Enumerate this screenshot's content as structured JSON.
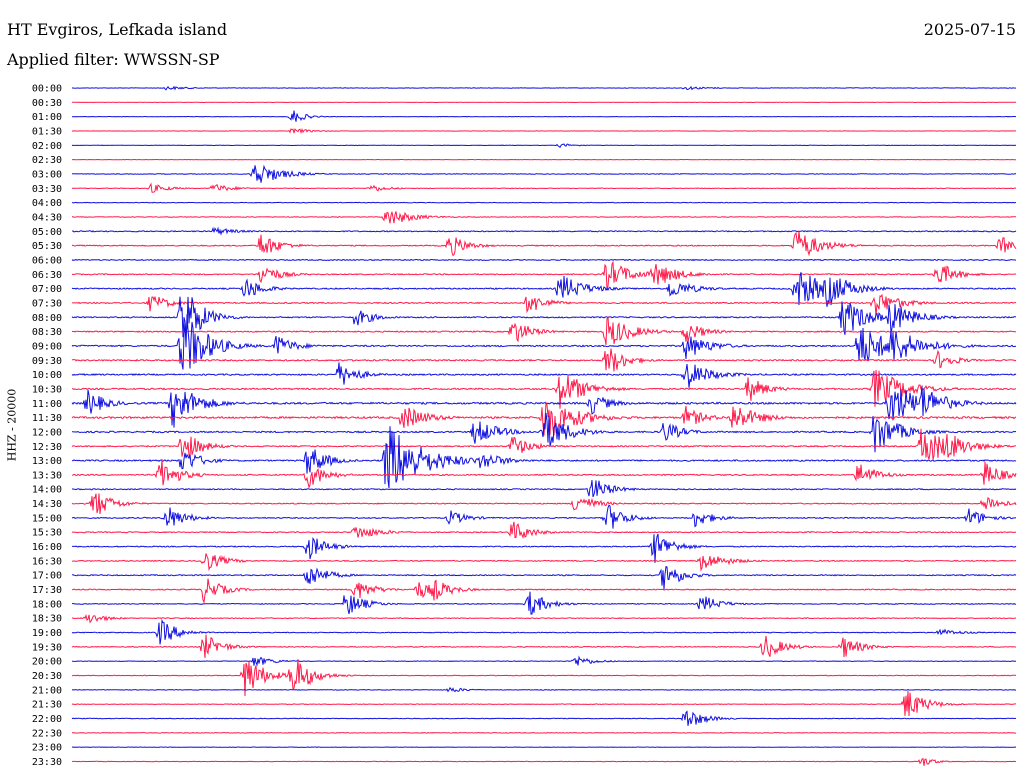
{
  "header": {
    "station": "HT Evgiros, Lefkada island",
    "date": "2025-07-15",
    "filter": "Applied filter: WWSSN-SP",
    "channel_label": "HHZ - 20000"
  },
  "colors": {
    "blue": "#1010e0",
    "red": "#ff1a4a"
  },
  "chart_data": {
    "type": "line",
    "title": "HT Evgiros, Lefkada island",
    "ylabel": "HHZ - 20000",
    "row_labels": [
      "00:00",
      "00:30",
      "01:00",
      "01:30",
      "02:00",
      "02:30",
      "03:00",
      "03:30",
      "04:00",
      "04:30",
      "05:00",
      "05:30",
      "06:00",
      "06:30",
      "07:00",
      "07:30",
      "08:00",
      "08:30",
      "09:00",
      "09:30",
      "10:00",
      "10:30",
      "11:00",
      "11:30",
      "12:00",
      "12:30",
      "13:00",
      "13:30",
      "14:00",
      "14:30",
      "15:00",
      "15:30",
      "16:00",
      "16:30",
      "17:00",
      "17:30",
      "18:00",
      "18:30",
      "19:00",
      "19:30",
      "20:00",
      "20:30",
      "21:00",
      "21:30",
      "22:00",
      "22:30",
      "23:00",
      "23:30"
    ],
    "row_minutes": 30,
    "series_colors": [
      "blue",
      "red"
    ],
    "noise_levels": [
      0.2,
      0.15,
      0.2,
      0.15,
      0.2,
      0.2,
      0.3,
      0.3,
      0.3,
      0.3,
      0.5,
      0.5,
      0.5,
      0.5,
      0.6,
      0.6,
      0.6,
      0.6,
      0.7,
      0.7,
      0.7,
      0.7,
      0.9,
      0.9,
      0.7,
      0.6,
      0.7,
      0.6,
      0.5,
      0.5,
      0.5,
      0.5,
      0.5,
      0.5,
      0.5,
      0.5,
      0.4,
      0.4,
      0.4,
      0.4,
      0.3,
      0.3,
      0.3,
      0.3,
      0.3,
      0.3,
      0.2,
      0.2
    ],
    "events": [
      {
        "row": 0,
        "minute": 3.0,
        "amplitude": 2,
        "duration": 2
      },
      {
        "row": 0,
        "minute": 19.5,
        "amplitude": 2,
        "duration": 2
      },
      {
        "row": 2,
        "minute": 7.0,
        "amplitude": 8,
        "duration": 1
      },
      {
        "row": 3,
        "minute": 7.0,
        "amplitude": 3,
        "duration": 1.5
      },
      {
        "row": 4,
        "minute": 15.5,
        "amplitude": 2,
        "duration": 1.5
      },
      {
        "row": 6,
        "minute": 5.8,
        "amplitude": 14,
        "duration": 2
      },
      {
        "row": 7,
        "minute": 2.5,
        "amplitude": 5,
        "duration": 1.5
      },
      {
        "row": 7,
        "minute": 4.5,
        "amplitude": 5,
        "duration": 1.5
      },
      {
        "row": 7,
        "minute": 9.5,
        "amplitude": 4,
        "duration": 1.5
      },
      {
        "row": 9,
        "minute": 10.0,
        "amplitude": 10,
        "duration": 2
      },
      {
        "row": 10,
        "minute": 4.5,
        "amplitude": 4,
        "duration": 2
      },
      {
        "row": 11,
        "minute": 6.0,
        "amplitude": 14,
        "duration": 1.5
      },
      {
        "row": 11,
        "minute": 12.0,
        "amplitude": 12,
        "duration": 1.5
      },
      {
        "row": 11,
        "minute": 23.0,
        "amplitude": 18,
        "duration": 2
      },
      {
        "row": 11,
        "minute": 29.5,
        "amplitude": 10,
        "duration": 1.5
      },
      {
        "row": 13,
        "minute": 6.0,
        "amplitude": 12,
        "duration": 1.5
      },
      {
        "row": 13,
        "minute": 17.0,
        "amplitude": 16,
        "duration": 2
      },
      {
        "row": 13,
        "minute": 18.5,
        "amplitude": 14,
        "duration": 2
      },
      {
        "row": 13,
        "minute": 27.5,
        "amplitude": 14,
        "duration": 1.5
      },
      {
        "row": 14,
        "minute": 5.5,
        "amplitude": 12,
        "duration": 1.5
      },
      {
        "row": 14,
        "minute": 15.5,
        "amplitude": 16,
        "duration": 2
      },
      {
        "row": 14,
        "minute": 19.0,
        "amplitude": 10,
        "duration": 2
      },
      {
        "row": 14,
        "minute": 23.0,
        "amplitude": 22,
        "duration": 2.5
      },
      {
        "row": 14,
        "minute": 24.0,
        "amplitude": 20,
        "duration": 2
      },
      {
        "row": 15,
        "minute": 2.5,
        "amplitude": 10,
        "duration": 1.5
      },
      {
        "row": 15,
        "minute": 14.5,
        "amplitude": 12,
        "duration": 1.5
      },
      {
        "row": 15,
        "minute": 25.5,
        "amplitude": 14,
        "duration": 2
      },
      {
        "row": 16,
        "minute": 3.5,
        "amplitude": 40,
        "duration": 1.5
      },
      {
        "row": 16,
        "minute": 9.0,
        "amplitude": 10,
        "duration": 1.5
      },
      {
        "row": 16,
        "minute": 24.5,
        "amplitude": 22,
        "duration": 2
      },
      {
        "row": 16,
        "minute": 26.0,
        "amplitude": 18,
        "duration": 2
      },
      {
        "row": 17,
        "minute": 14.0,
        "amplitude": 14,
        "duration": 1.5
      },
      {
        "row": 17,
        "minute": 17.0,
        "amplitude": 18,
        "duration": 2
      },
      {
        "row": 17,
        "minute": 19.5,
        "amplitude": 12,
        "duration": 1.5
      },
      {
        "row": 18,
        "minute": 3.5,
        "amplitude": 40,
        "duration": 2
      },
      {
        "row": 18,
        "minute": 6.5,
        "amplitude": 12,
        "duration": 1.5
      },
      {
        "row": 18,
        "minute": 19.5,
        "amplitude": 14,
        "duration": 2
      },
      {
        "row": 18,
        "minute": 25.0,
        "amplitude": 24,
        "duration": 2.5
      },
      {
        "row": 18,
        "minute": 26.0,
        "amplitude": 22,
        "duration": 2.5
      },
      {
        "row": 19,
        "minute": 17.0,
        "amplitude": 18,
        "duration": 1.5
      },
      {
        "row": 19,
        "minute": 27.5,
        "amplitude": 10,
        "duration": 1.5
      },
      {
        "row": 20,
        "minute": 8.5,
        "amplitude": 14,
        "duration": 1.5
      },
      {
        "row": 20,
        "minute": 19.5,
        "amplitude": 16,
        "duration": 2
      },
      {
        "row": 21,
        "minute": 15.5,
        "amplitude": 22,
        "duration": 2
      },
      {
        "row": 21,
        "minute": 21.5,
        "amplitude": 14,
        "duration": 1.5
      },
      {
        "row": 21,
        "minute": 25.5,
        "amplitude": 22,
        "duration": 2.5
      },
      {
        "row": 22,
        "minute": 0.5,
        "amplitude": 14,
        "duration": 1.5
      },
      {
        "row": 22,
        "minute": 3.2,
        "amplitude": 26,
        "duration": 2
      },
      {
        "row": 22,
        "minute": 16.5,
        "amplitude": 12,
        "duration": 1.5
      },
      {
        "row": 22,
        "minute": 26.0,
        "amplitude": 24,
        "duration": 2.5
      },
      {
        "row": 22,
        "minute": 27.0,
        "amplitude": 20,
        "duration": 2
      },
      {
        "row": 23,
        "minute": 10.5,
        "amplitude": 14,
        "duration": 2
      },
      {
        "row": 23,
        "minute": 15.0,
        "amplitude": 26,
        "duration": 2.5
      },
      {
        "row": 23,
        "minute": 19.5,
        "amplitude": 12,
        "duration": 1.5
      },
      {
        "row": 23,
        "minute": 21.0,
        "amplitude": 16,
        "duration": 2
      },
      {
        "row": 24,
        "minute": 12.8,
        "amplitude": 14,
        "duration": 2
      },
      {
        "row": 24,
        "minute": 15.0,
        "amplitude": 22,
        "duration": 2
      },
      {
        "row": 24,
        "minute": 18.8,
        "amplitude": 12,
        "duration": 1.5
      },
      {
        "row": 24,
        "minute": 25.5,
        "amplitude": 24,
        "duration": 2
      },
      {
        "row": 25,
        "minute": 3.5,
        "amplitude": 18,
        "duration": 1.5
      },
      {
        "row": 25,
        "minute": 14.0,
        "amplitude": 12,
        "duration": 1.5
      },
      {
        "row": 25,
        "minute": 27.0,
        "amplitude": 22,
        "duration": 2.5
      },
      {
        "row": 25,
        "minute": 27.8,
        "amplitude": 16,
        "duration": 2
      },
      {
        "row": 26,
        "minute": 3.5,
        "amplitude": 14,
        "duration": 1.5
      },
      {
        "row": 26,
        "minute": 7.5,
        "amplitude": 18,
        "duration": 1.5
      },
      {
        "row": 26,
        "minute": 10.0,
        "amplitude": 40,
        "duration": 3
      },
      {
        "row": 26,
        "minute": 13.0,
        "amplitude": 10,
        "duration": 2
      },
      {
        "row": 27,
        "minute": 2.8,
        "amplitude": 18,
        "duration": 1.5
      },
      {
        "row": 27,
        "minute": 7.5,
        "amplitude": 14,
        "duration": 1.5
      },
      {
        "row": 27,
        "minute": 25.0,
        "amplitude": 14,
        "duration": 1.5
      },
      {
        "row": 27,
        "minute": 29.0,
        "amplitude": 14,
        "duration": 1.5
      },
      {
        "row": 28,
        "minute": 16.5,
        "amplitude": 14,
        "duration": 1.5
      },
      {
        "row": 29,
        "minute": 0.7,
        "amplitude": 16,
        "duration": 1.5
      },
      {
        "row": 29,
        "minute": 16.0,
        "amplitude": 12,
        "duration": 1.5
      },
      {
        "row": 29,
        "minute": 29.0,
        "amplitude": 10,
        "duration": 1.5
      },
      {
        "row": 30,
        "minute": 3.0,
        "amplitude": 14,
        "duration": 1.5
      },
      {
        "row": 30,
        "minute": 12.0,
        "amplitude": 8,
        "duration": 1.5
      },
      {
        "row": 30,
        "minute": 17.0,
        "amplitude": 16,
        "duration": 1.5
      },
      {
        "row": 30,
        "minute": 19.8,
        "amplitude": 10,
        "duration": 1.5
      },
      {
        "row": 30,
        "minute": 28.5,
        "amplitude": 10,
        "duration": 1.5
      },
      {
        "row": 31,
        "minute": 9.0,
        "amplitude": 8,
        "duration": 2
      },
      {
        "row": 31,
        "minute": 14.0,
        "amplitude": 12,
        "duration": 1.5
      },
      {
        "row": 32,
        "minute": 7.5,
        "amplitude": 14,
        "duration": 1.5
      },
      {
        "row": 32,
        "minute": 18.5,
        "amplitude": 18,
        "duration": 1.5
      },
      {
        "row": 33,
        "minute": 4.2,
        "amplitude": 12,
        "duration": 1.5
      },
      {
        "row": 33,
        "minute": 20.0,
        "amplitude": 10,
        "duration": 2
      },
      {
        "row": 34,
        "minute": 7.5,
        "amplitude": 14,
        "duration": 1.5
      },
      {
        "row": 34,
        "minute": 18.8,
        "amplitude": 16,
        "duration": 1.5
      },
      {
        "row": 35,
        "minute": 4.2,
        "amplitude": 14,
        "duration": 1.5
      },
      {
        "row": 35,
        "minute": 9.0,
        "amplitude": 12,
        "duration": 1.5
      },
      {
        "row": 35,
        "minute": 11.0,
        "amplitude": 10,
        "duration": 1.5
      },
      {
        "row": 35,
        "minute": 11.5,
        "amplitude": 12,
        "duration": 1.5
      },
      {
        "row": 36,
        "minute": 8.7,
        "amplitude": 14,
        "duration": 1.5
      },
      {
        "row": 36,
        "minute": 14.5,
        "amplitude": 14,
        "duration": 1.5
      },
      {
        "row": 36,
        "minute": 20.0,
        "amplitude": 10,
        "duration": 1.5
      },
      {
        "row": 37,
        "minute": 0.5,
        "amplitude": 6,
        "duration": 1.5
      },
      {
        "row": 38,
        "minute": 2.8,
        "amplitude": 14,
        "duration": 1.5
      },
      {
        "row": 38,
        "minute": 27.5,
        "amplitude": 4,
        "duration": 2
      },
      {
        "row": 39,
        "minute": 4.2,
        "amplitude": 14,
        "duration": 1.5
      },
      {
        "row": 39,
        "minute": 22.0,
        "amplitude": 14,
        "duration": 1.5
      },
      {
        "row": 39,
        "minute": 24.5,
        "amplitude": 12,
        "duration": 1.5
      },
      {
        "row": 40,
        "minute": 5.8,
        "amplitude": 6,
        "duration": 1.5
      },
      {
        "row": 40,
        "minute": 16.0,
        "amplitude": 6,
        "duration": 1.5
      },
      {
        "row": 41,
        "minute": 5.5,
        "amplitude": 24,
        "duration": 1.5
      },
      {
        "row": 41,
        "minute": 7.0,
        "amplitude": 24,
        "duration": 1.5
      },
      {
        "row": 42,
        "minute": 12.0,
        "amplitude": 3,
        "duration": 1.5
      },
      {
        "row": 43,
        "minute": 26.5,
        "amplitude": 18,
        "duration": 1.5
      },
      {
        "row": 44,
        "minute": 19.5,
        "amplitude": 12,
        "duration": 1.5
      },
      {
        "row": 47,
        "minute": 27.0,
        "amplitude": 6,
        "duration": 1
      }
    ]
  }
}
